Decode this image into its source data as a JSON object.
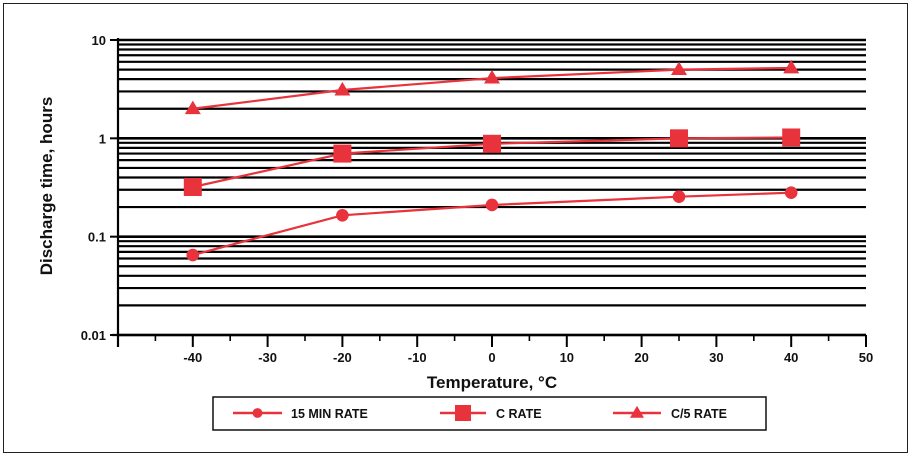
{
  "chart_data": {
    "type": "line",
    "title": "",
    "xlabel": "Temperature, °C",
    "ylabel": "Discharge time, hours",
    "xlim": [
      -50,
      50
    ],
    "ylim": [
      0.01,
      10
    ],
    "yscale": "log",
    "grid": true,
    "legend_position": "bottom",
    "line_color": "#e8323c",
    "x_ticks": [
      -40,
      -30,
      -20,
      -10,
      0,
      10,
      20,
      30,
      40,
      50
    ],
    "y_ticks": [
      {
        "value": 10,
        "label": "10"
      },
      {
        "value": 1,
        "label": "1"
      },
      {
        "value": 0.1,
        "label": "0.1"
      },
      {
        "value": 0.01,
        "label": "0.01"
      }
    ],
    "series": [
      {
        "name": "15 MIN RATE",
        "marker": "circle",
        "x": [
          -40,
          -20,
          0,
          25,
          40
        ],
        "y": [
          0.065,
          0.165,
          0.21,
          0.255,
          0.28
        ]
      },
      {
        "name": "C RATE",
        "marker": "square",
        "x": [
          -40,
          -20,
          0,
          25,
          40
        ],
        "y": [
          0.32,
          0.7,
          0.88,
          1.0,
          1.02
        ]
      },
      {
        "name": "C/5 RATE",
        "marker": "triangle",
        "x": [
          -40,
          -20,
          0,
          25,
          40
        ],
        "y": [
          2.0,
          3.1,
          4.1,
          5.0,
          5.2
        ]
      }
    ]
  }
}
